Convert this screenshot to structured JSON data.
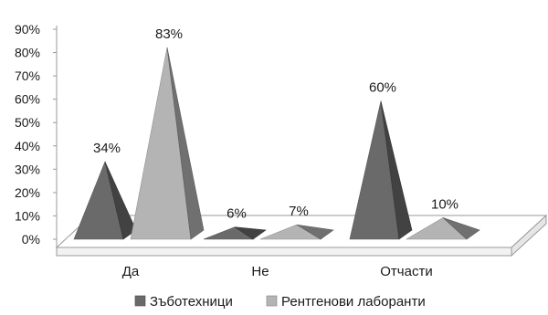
{
  "chart_data": {
    "type": "bar",
    "bar_shape": "pyramid-3d",
    "categories": [
      "Да",
      "Не",
      "Отчасти"
    ],
    "series": [
      {
        "name": "Зъботехници",
        "values": [
          34,
          6,
          60
        ],
        "labels": [
          "34%",
          "6%",
          "60%"
        ],
        "color": "#6a6a6a"
      },
      {
        "name": "Рентгенови лаборанти",
        "values": [
          83,
          7,
          10
        ],
        "labels": [
          "83%",
          "7%",
          "10%"
        ],
        "color": "#b4b4b4"
      }
    ],
    "ylim": [
      0,
      90
    ],
    "yticks": [
      0,
      10,
      20,
      30,
      40,
      50,
      60,
      70,
      80,
      90
    ],
    "ytick_labels": [
      "0%",
      "10%",
      "20%",
      "30%",
      "40%",
      "50%",
      "60%",
      "70%",
      "80%",
      "90%"
    ],
    "legend_position": "bottom",
    "grid": false
  }
}
